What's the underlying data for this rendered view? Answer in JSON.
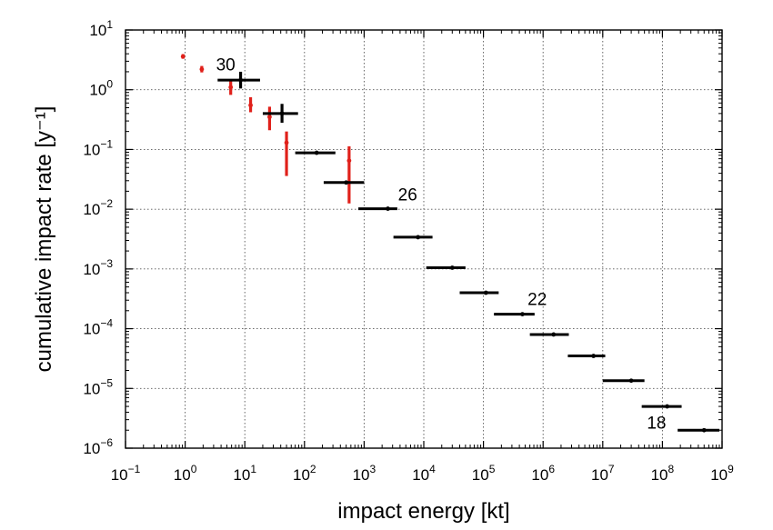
{
  "chart_data": {
    "type": "scatter",
    "xlabel": "impact energy [kt]",
    "ylabel": "cumulative impact rate [y⁻¹]",
    "x_scale": "log",
    "y_scale": "log",
    "xlim": [
      0.1,
      1000000000
    ],
    "ylim": [
      1e-06,
      10
    ],
    "grid": true,
    "x_ticks": [
      {
        "base": "10",
        "exp": "−1"
      },
      {
        "base": "10",
        "exp": "0"
      },
      {
        "base": "10",
        "exp": "1"
      },
      {
        "base": "10",
        "exp": "2"
      },
      {
        "base": "10",
        "exp": "3"
      },
      {
        "base": "10",
        "exp": "4"
      },
      {
        "base": "10",
        "exp": "5"
      },
      {
        "base": "10",
        "exp": "6"
      },
      {
        "base": "10",
        "exp": "7"
      },
      {
        "base": "10",
        "exp": "8"
      },
      {
        "base": "10",
        "exp": "9"
      }
    ],
    "y_ticks": [
      {
        "base": "10",
        "exp": "−6"
      },
      {
        "base": "10",
        "exp": "−5"
      },
      {
        "base": "10",
        "exp": "−4"
      },
      {
        "base": "10",
        "exp": "−3"
      },
      {
        "base": "10",
        "exp": "−2"
      },
      {
        "base": "10",
        "exp": "−1"
      },
      {
        "base": "10",
        "exp": "0"
      },
      {
        "base": "10",
        "exp": "1"
      }
    ],
    "series": [
      {
        "color": "#e0201a",
        "points": [
          {
            "x": 0.92,
            "y": 3.6,
            "ylo": 3.3,
            "yhi": 3.95
          },
          {
            "x": 1.9,
            "y": 2.2,
            "ylo": 1.95,
            "yhi": 2.5
          },
          {
            "x": 5.8,
            "y": 1.1,
            "ylo": 0.82,
            "yhi": 1.5
          },
          {
            "x": 12.5,
            "y": 0.55,
            "ylo": 0.42,
            "yhi": 0.75
          },
          {
            "x": 26,
            "y": 0.35,
            "ylo": 0.21,
            "yhi": 0.52
          },
          {
            "x": 50,
            "y": 0.13,
            "ylo": 0.036,
            "yhi": 0.2
          },
          {
            "x": 560,
            "y": 0.065,
            "ylo": 0.0125,
            "yhi": 0.113
          }
        ]
      },
      {
        "color": "#000000",
        "points": [
          {
            "x": 8.5,
            "y": 1.45,
            "xlo": 3.5,
            "xhi": 18,
            "ylo": 1.05,
            "yhi": 2.0
          },
          {
            "x": 42,
            "y": 0.4,
            "xlo": 20,
            "xhi": 78,
            "ylo": 0.28,
            "yhi": 0.58
          },
          {
            "x": 160,
            "y": 0.088,
            "xlo": 70,
            "xhi": 330
          },
          {
            "x": 500,
            "y": 0.028,
            "xlo": 210,
            "xhi": 1000
          },
          {
            "x": 2500,
            "y": 0.0102,
            "xlo": 800,
            "xhi": 3600
          },
          {
            "x": 8000,
            "y": 0.0034,
            "xlo": 3100,
            "xhi": 14000
          },
          {
            "x": 30000,
            "y": 0.00105,
            "xlo": 11000,
            "xhi": 50000
          },
          {
            "x": 110000,
            "y": 0.0004,
            "xlo": 40000,
            "xhi": 180000
          },
          {
            "x": 450000,
            "y": 0.000175,
            "xlo": 150000,
            "xhi": 720000
          },
          {
            "x": 1500000,
            "y": 8e-05,
            "xlo": 600000,
            "xhi": 2700000
          },
          {
            "x": 7000000,
            "y": 3.5e-05,
            "xlo": 2600000,
            "xhi": 11000000
          },
          {
            "x": 30000000,
            "y": 1.35e-05,
            "xlo": 10000000,
            "xhi": 50000000
          },
          {
            "x": 120000000,
            "y": 5e-06,
            "xlo": 45000000,
            "xhi": 210000000
          },
          {
            "x": 500000000,
            "y": 2e-06,
            "xlo": 180000000,
            "xhi": 900000000
          }
        ]
      }
    ],
    "annotations": [
      {
        "text": "30",
        "x": 3.3,
        "y": 2.7
      },
      {
        "text": "26",
        "x": 3700,
        "y": 0.018
      },
      {
        "text": "22",
        "x": 550000,
        "y": 0.00032
      },
      {
        "text": "18",
        "x": 55000000,
        "y": 2.7e-06
      }
    ]
  }
}
